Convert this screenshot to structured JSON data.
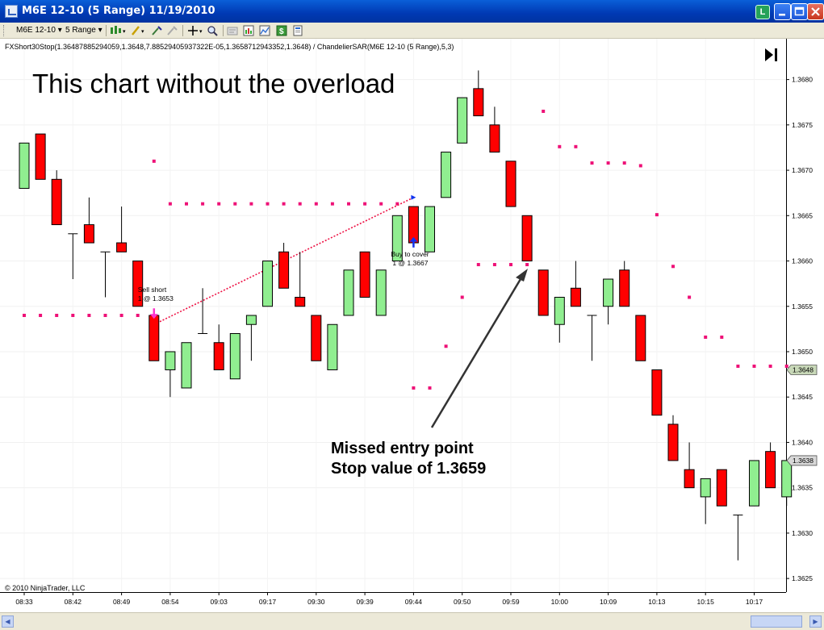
{
  "window": {
    "title": "M6E 12-10 (5 Range)  11/19/2010",
    "badge_label": "L"
  },
  "toolbar": {
    "instrument": "M6E 12-10",
    "period": "5 Range"
  },
  "chart_data": {
    "type": "candlestick",
    "indicator_label": "FXShort30Stop(1.36487885294059,1.3648,7.88529405937322E-05,1.3658712943352,1.3648) / ChandelierSAR(M6E 12-10 (5 Range),5,3)",
    "annotation_title": "This chart without the overload",
    "callout_text": [
      "Missed entry point",
      "Stop value of 1.3659"
    ],
    "copyright": "© 2010 NinjaTrader, LLC",
    "ylim": [
      1.36235,
      1.36845
    ],
    "y_ticks": [
      "1.3625",
      "1.3630",
      "1.3635",
      "1.3640",
      "1.3645",
      "1.3650",
      "1.3655",
      "1.3660",
      "1.3665",
      "1.3670",
      "1.3675",
      "1.3680"
    ],
    "x_ticks": [
      "08:33",
      "08:42",
      "08:49",
      "08:54",
      "09:03",
      "09:17",
      "09:30",
      "09:39",
      "09:44",
      "09:50",
      "09:59",
      "10:00",
      "10:09",
      "10:13",
      "10:15",
      "10:17"
    ],
    "price_markers": [
      {
        "label": "1.3648",
        "value": 1.3648
      },
      {
        "label": "1.3638",
        "value": 1.3638
      }
    ],
    "candles": [
      {
        "o": 1.3668,
        "h": 1.3673,
        "l": 1.3668,
        "c": 1.3673
      },
      {
        "o": 1.3674,
        "h": 1.3674,
        "l": 1.3669,
        "c": 1.3669
      },
      {
        "o": 1.3669,
        "h": 1.367,
        "l": 1.3664,
        "c": 1.3664
      },
      {
        "o": 1.3663,
        "h": 1.3663,
        "l": 1.3658,
        "c": 1.3663
      },
      {
        "o": 1.3664,
        "h": 1.3667,
        "l": 1.3662,
        "c": 1.3662
      },
      {
        "o": 1.3661,
        "h": 1.3661,
        "l": 1.3656,
        "c": 1.3661
      },
      {
        "o": 1.3662,
        "h": 1.3666,
        "l": 1.3661,
        "c": 1.3661
      },
      {
        "o": 1.366,
        "h": 1.366,
        "l": 1.3655,
        "c": 1.3655
      },
      {
        "o": 1.3654,
        "h": 1.3654,
        "l": 1.3649,
        "c": 1.3649
      },
      {
        "o": 1.3648,
        "h": 1.365,
        "l": 1.3645,
        "c": 1.365
      },
      {
        "o": 1.3646,
        "h": 1.3651,
        "l": 1.3646,
        "c": 1.3651
      },
      {
        "o": 1.3652,
        "h": 1.3657,
        "l": 1.3652,
        "c": 1.3652
      },
      {
        "o": 1.3651,
        "h": 1.3653,
        "l": 1.3648,
        "c": 1.3648
      },
      {
        "o": 1.3647,
        "h": 1.3652,
        "l": 1.3647,
        "c": 1.3652
      },
      {
        "o": 1.3653,
        "h": 1.3654,
        "l": 1.3649,
        "c": 1.3654
      },
      {
        "o": 1.3655,
        "h": 1.366,
        "l": 1.3655,
        "c": 1.366
      },
      {
        "o": 1.3661,
        "h": 1.3662,
        "l": 1.3657,
        "c": 1.3657
      },
      {
        "o": 1.3656,
        "h": 1.3661,
        "l": 1.3655,
        "c": 1.3655
      },
      {
        "o": 1.3654,
        "h": 1.3654,
        "l": 1.3649,
        "c": 1.3649
      },
      {
        "o": 1.3648,
        "h": 1.3653,
        "l": 1.3648,
        "c": 1.3653
      },
      {
        "o": 1.3654,
        "h": 1.3659,
        "l": 1.3654,
        "c": 1.3659
      },
      {
        "o": 1.3661,
        "h": 1.3661,
        "l": 1.3656,
        "c": 1.3656
      },
      {
        "o": 1.3654,
        "h": 1.3659,
        "l": 1.3654,
        "c": 1.3659
      },
      {
        "o": 1.366,
        "h": 1.3665,
        "l": 1.366,
        "c": 1.3665
      },
      {
        "o": 1.3666,
        "h": 1.3666,
        "l": 1.3662,
        "c": 1.3662
      },
      {
        "o": 1.3661,
        "h": 1.3666,
        "l": 1.3661,
        "c": 1.3666
      },
      {
        "o": 1.3667,
        "h": 1.3672,
        "l": 1.3667,
        "c": 1.3672
      },
      {
        "o": 1.3673,
        "h": 1.3678,
        "l": 1.3673,
        "c": 1.3678
      },
      {
        "o": 1.3679,
        "h": 1.3681,
        "l": 1.3676,
        "c": 1.3676
      },
      {
        "o": 1.3675,
        "h": 1.3677,
        "l": 1.3672,
        "c": 1.3672
      },
      {
        "o": 1.3671,
        "h": 1.3671,
        "l": 1.3666,
        "c": 1.3666
      },
      {
        "o": 1.3665,
        "h": 1.3665,
        "l": 1.366,
        "c": 1.366
      },
      {
        "o": 1.3659,
        "h": 1.3659,
        "l": 1.3654,
        "c": 1.3654
      },
      {
        "o": 1.3653,
        "h": 1.3656,
        "l": 1.3651,
        "c": 1.3656
      },
      {
        "o": 1.3657,
        "h": 1.366,
        "l": 1.3655,
        "c": 1.3655
      },
      {
        "o": 1.3654,
        "h": 1.3654,
        "l": 1.3649,
        "c": 1.3654
      },
      {
        "o": 1.3655,
        "h": 1.3658,
        "l": 1.3653,
        "c": 1.3658
      },
      {
        "o": 1.3659,
        "h": 1.366,
        "l": 1.3655,
        "c": 1.3655
      },
      {
        "o": 1.3654,
        "h": 1.3654,
        "l": 1.3649,
        "c": 1.3649
      },
      {
        "o": 1.3648,
        "h": 1.3648,
        "l": 1.3643,
        "c": 1.3643
      },
      {
        "o": 1.3642,
        "h": 1.3643,
        "l": 1.3638,
        "c": 1.3638
      },
      {
        "o": 1.3637,
        "h": 1.364,
        "l": 1.3635,
        "c": 1.3635
      },
      {
        "o": 1.3634,
        "h": 1.3636,
        "l": 1.3631,
        "c": 1.3636
      },
      {
        "o": 1.3637,
        "h": 1.3637,
        "l": 1.3633,
        "c": 1.3633
      },
      {
        "o": 1.3632,
        "h": 1.3632,
        "l": 1.3627,
        "c": 1.3632
      },
      {
        "o": 1.3633,
        "h": 1.3638,
        "l": 1.3633,
        "c": 1.3638
      },
      {
        "o": 1.3639,
        "h": 1.364,
        "l": 1.3635,
        "c": 1.3635
      },
      {
        "o": 1.3634,
        "h": 1.3638,
        "l": 1.3633,
        "c": 1.3638
      }
    ],
    "stop_series": {
      "values": [
        1.3654,
        1.3654,
        1.3654,
        1.3654,
        1.3654,
        1.3654,
        1.3654,
        1.3654,
        1.3671,
        1.36663,
        1.36663,
        1.36663,
        1.36663,
        1.36663,
        1.36663,
        1.36663,
        1.36663,
        1.36663,
        1.36663,
        1.36663,
        1.36663,
        1.36663,
        1.36663,
        1.36663,
        1.3646,
        1.3646,
        1.36506,
        1.3656,
        1.36596,
        1.36596,
        1.36596,
        1.36596,
        1.36765,
        1.36726,
        1.36726,
        1.36708,
        1.36708,
        1.36708,
        1.36705,
        1.36651,
        1.36594,
        1.3656,
        1.36516,
        1.36516,
        1.36484,
        1.36484,
        1.36484,
        1.36484
      ],
      "color": "#ee1177"
    },
    "trades": [
      {
        "label": "Sell short",
        "detail": "1 @ 1.3653",
        "bar": 8,
        "price": 1.3653,
        "arrow": "down",
        "arrow_color": "#ff33cc"
      },
      {
        "label": "Buy to cover",
        "detail": "1 @ 1.3667",
        "bar": 24,
        "price": 1.3667,
        "arrow": "up",
        "arrow_color": "#1133ee"
      }
    ],
    "colors": {
      "up_fill": "#90ee90",
      "down_fill": "#ff0000",
      "trade_line": "#ee1144",
      "callout_arrow": "#333333"
    }
  }
}
